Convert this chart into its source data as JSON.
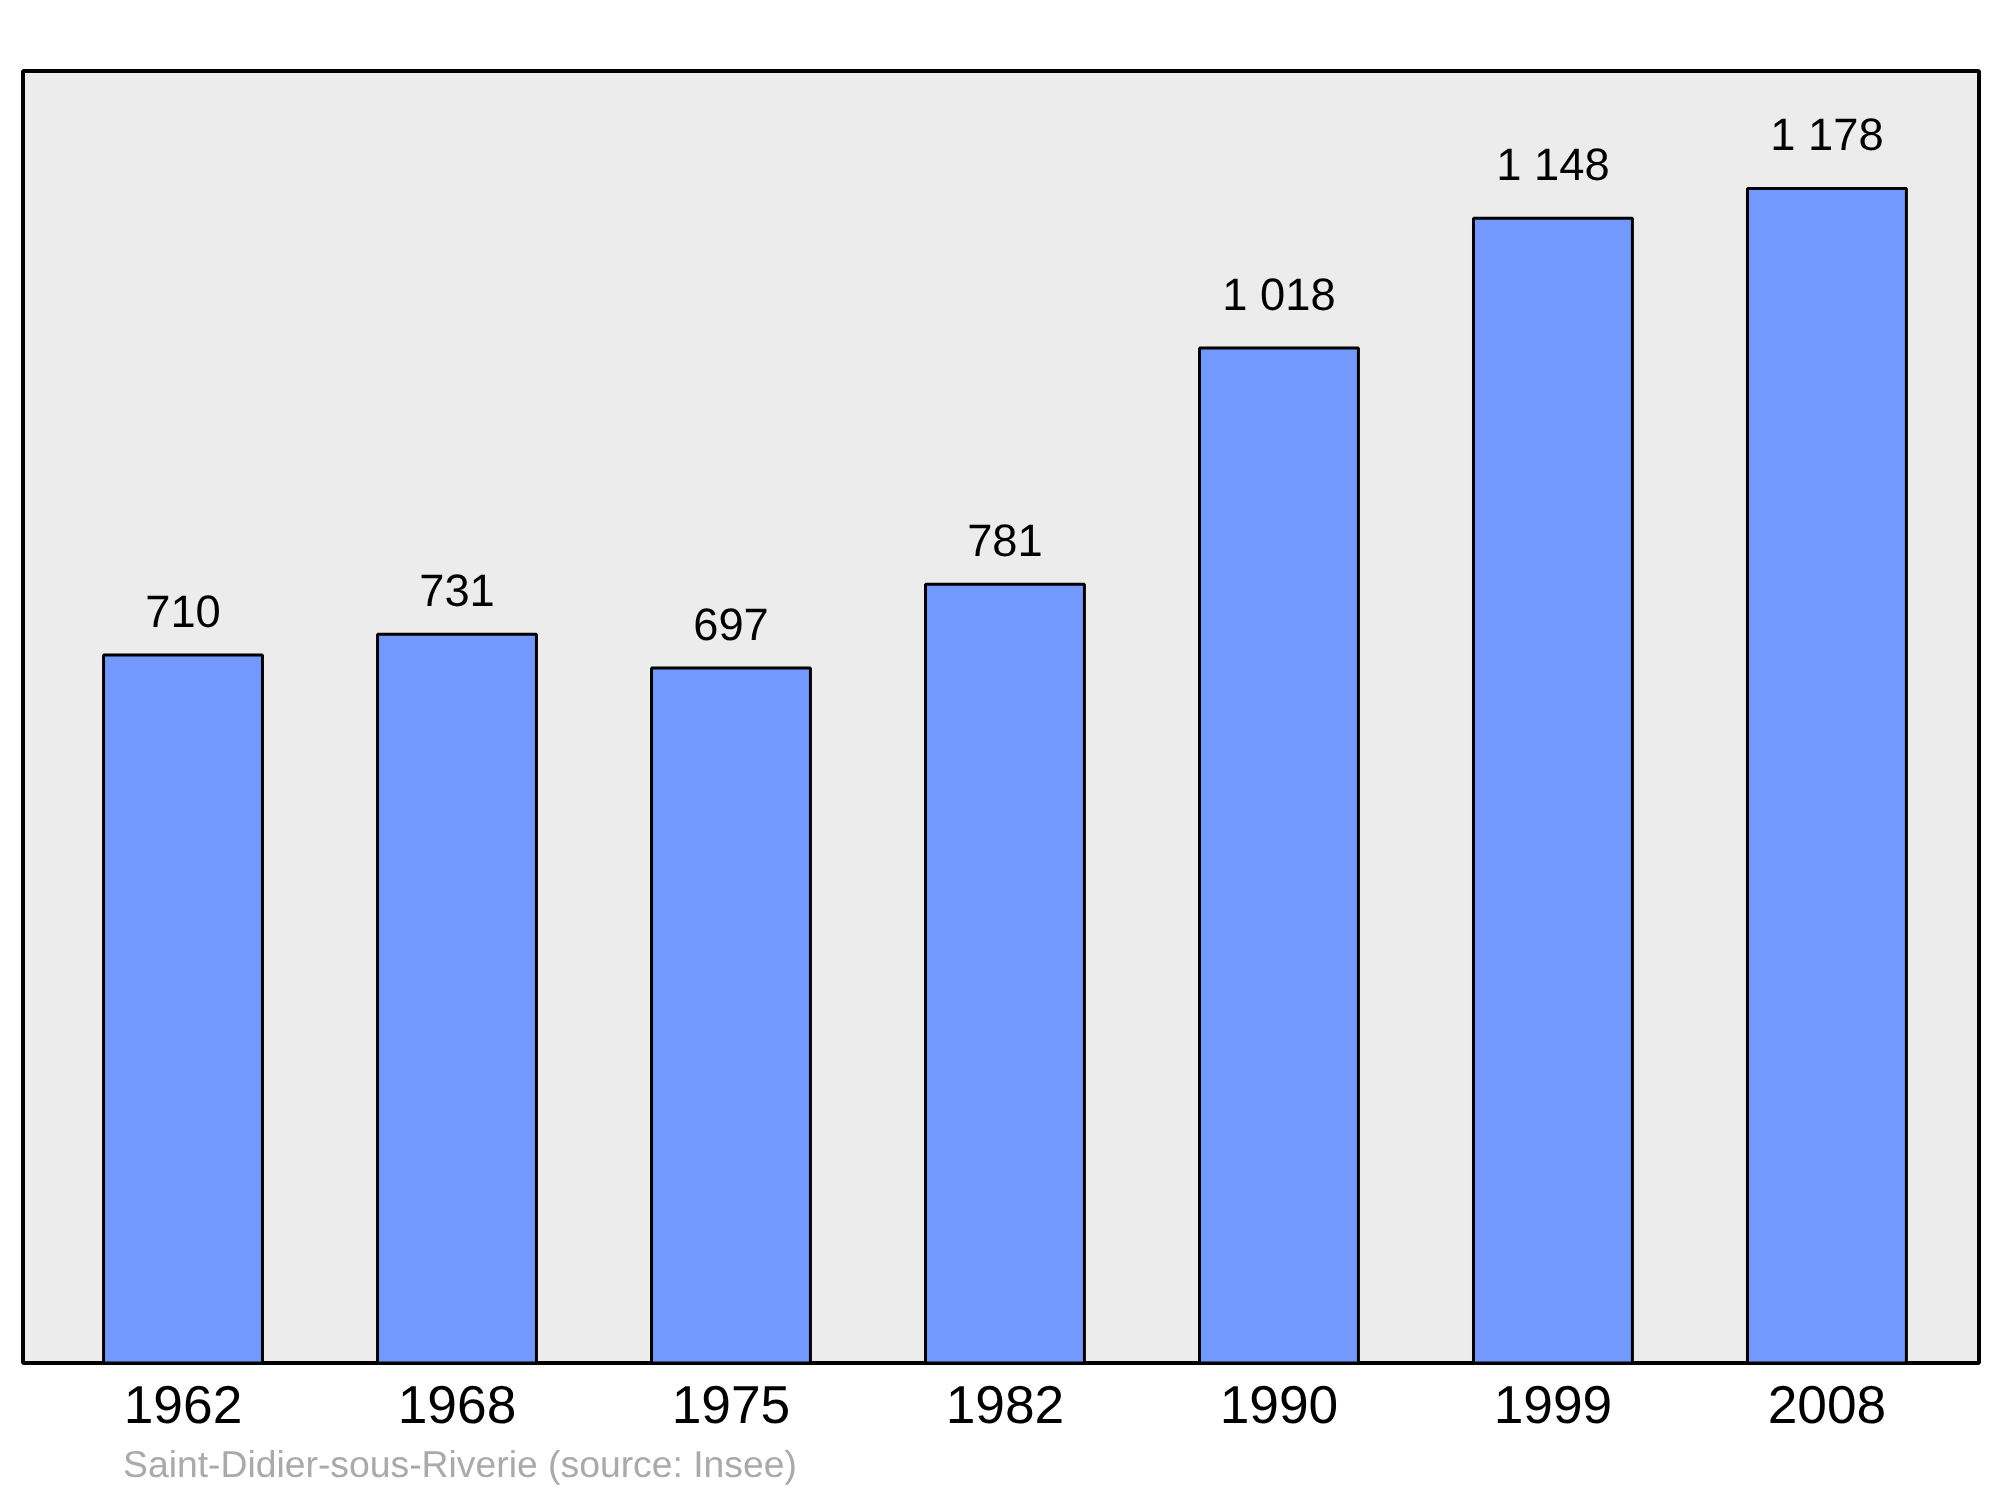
{
  "chart_data": {
    "type": "bar",
    "categories": [
      "1962",
      "1968",
      "1975",
      "1982",
      "1990",
      "1999",
      "2008"
    ],
    "values": [
      710,
      731,
      697,
      781,
      1018,
      1148,
      1178
    ],
    "value_labels": [
      "710",
      "731",
      "697",
      "781",
      "1 018",
      "1 148",
      "1 178"
    ],
    "color": "#7399ff",
    "grid": false,
    "annotations": [
      "Saint-Didier-sous-Riverie    (source: Insee)"
    ]
  }
}
